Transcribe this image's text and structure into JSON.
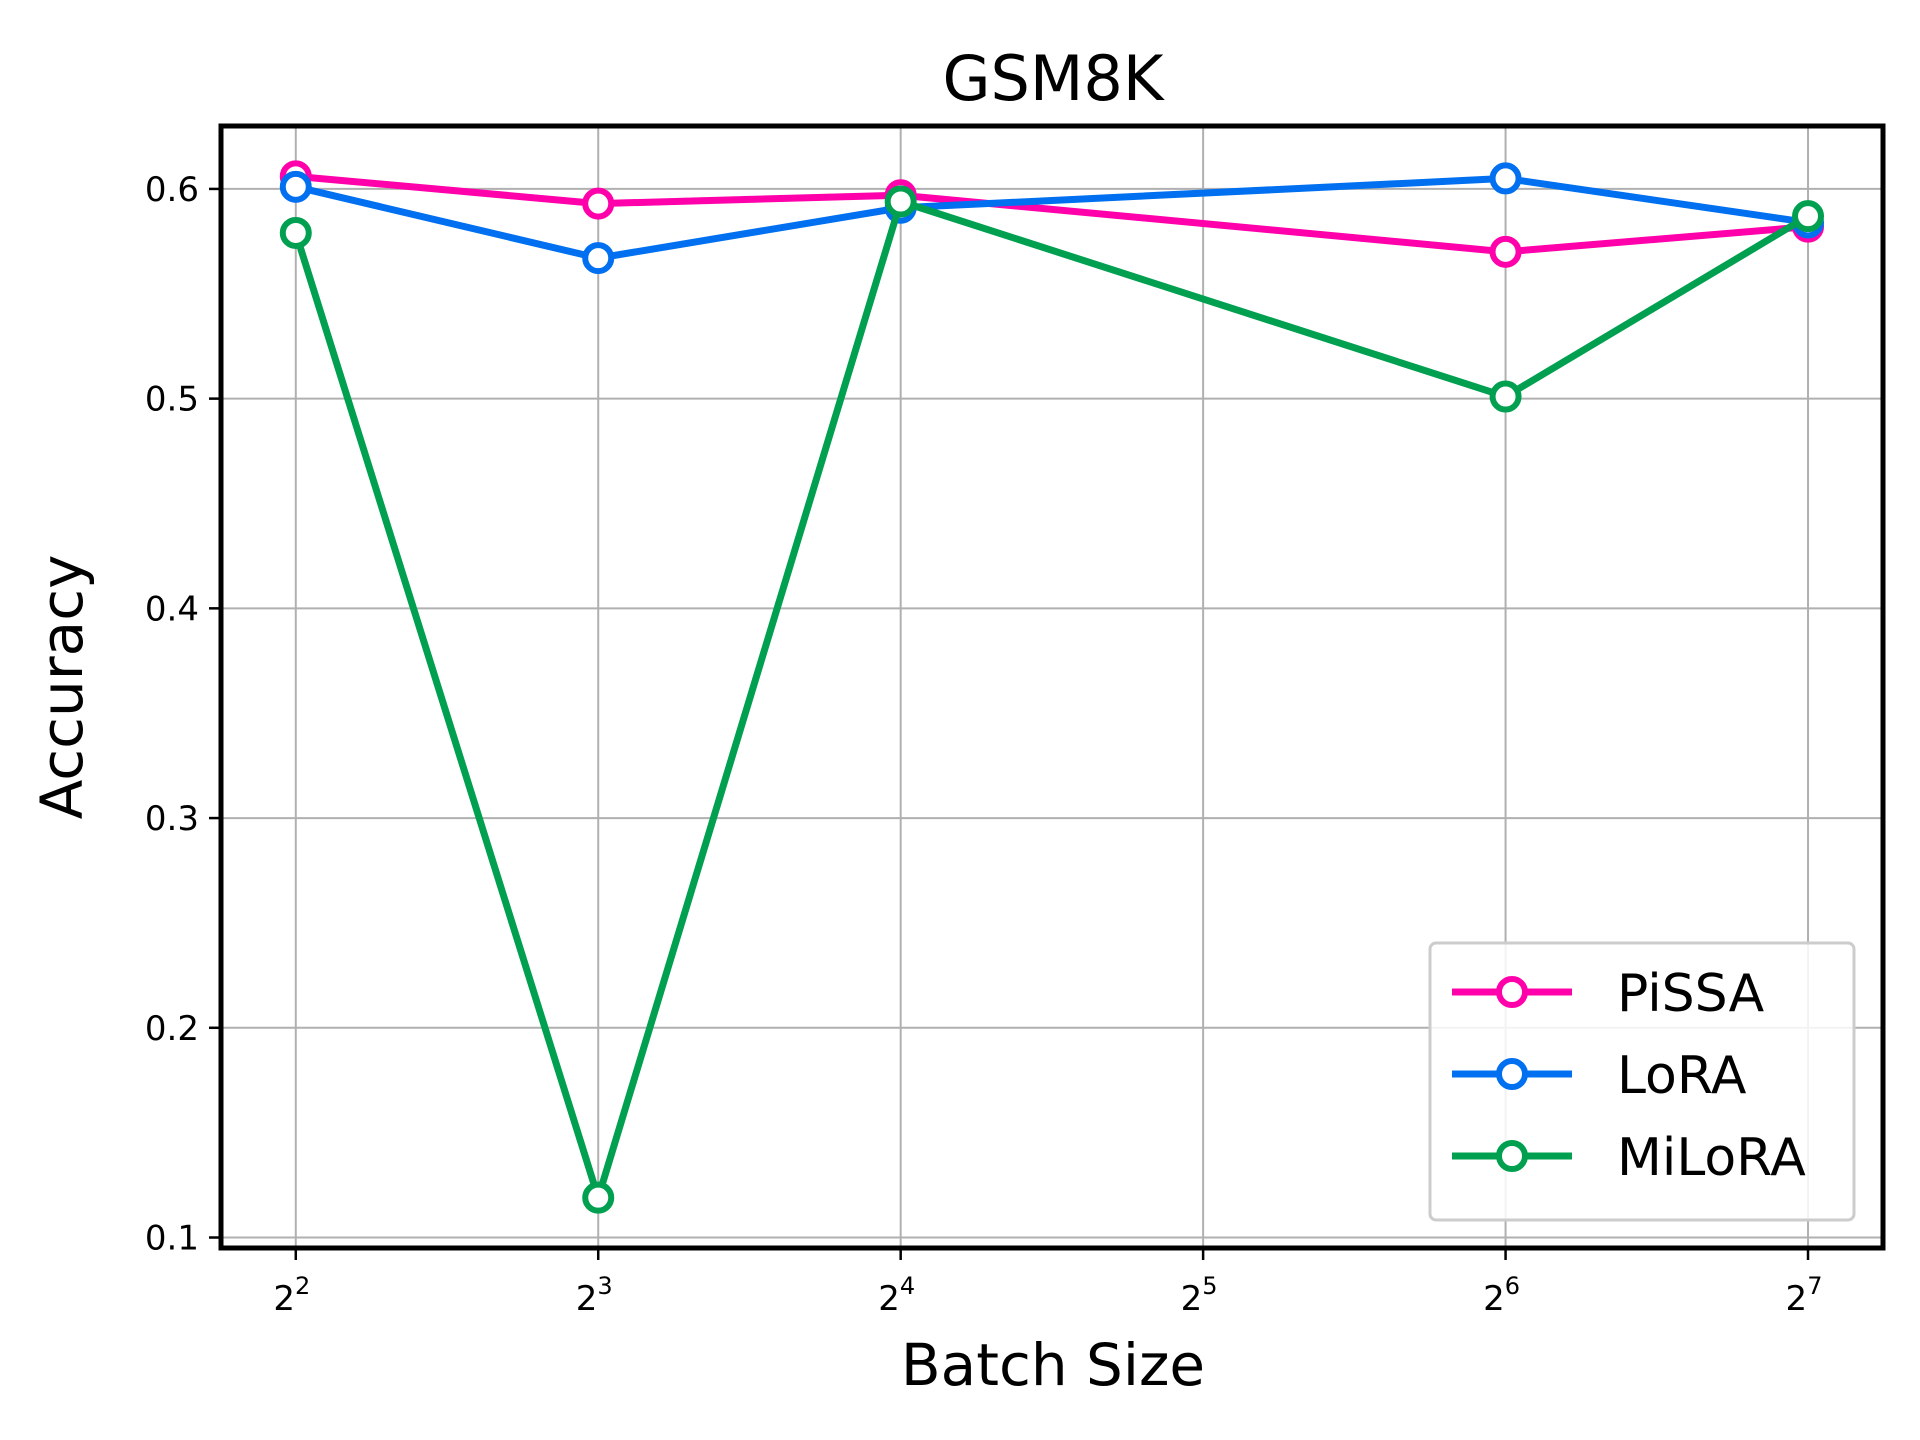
{
  "chart_data": {
    "type": "line",
    "title": "GSM8K",
    "xlabel": "Batch Size",
    "ylabel": "Accuracy",
    "x_scale": "log2",
    "x": [
      4,
      8,
      16,
      64,
      128
    ],
    "x_ticks": [
      {
        "value": 4,
        "base": "2",
        "exp": "2"
      },
      {
        "value": 8,
        "base": "2",
        "exp": "3"
      },
      {
        "value": 16,
        "base": "2",
        "exp": "4"
      },
      {
        "value": 32,
        "base": "2",
        "exp": "5"
      },
      {
        "value": 64,
        "base": "2",
        "exp": "6"
      },
      {
        "value": 128,
        "base": "2",
        "exp": "7"
      }
    ],
    "xlim": [
      3.37,
      152
    ],
    "y_ticks": [
      "0.1",
      "0.2",
      "0.3",
      "0.4",
      "0.5",
      "0.6"
    ],
    "ylim": [
      0.095,
      0.63
    ],
    "grid": true,
    "legend_position": "lower-right",
    "series": [
      {
        "name": "PiSSA",
        "color": "#ff00aa",
        "values": [
          0.606,
          0.593,
          0.597,
          0.57,
          0.582
        ]
      },
      {
        "name": "LoRA",
        "color": "#0070f0",
        "values": [
          0.601,
          0.567,
          0.591,
          0.605,
          0.584
        ]
      },
      {
        "name": "MiLoRA",
        "color": "#00a050",
        "values": [
          0.579,
          0.119,
          0.594,
          0.501,
          0.587
        ]
      }
    ]
  }
}
